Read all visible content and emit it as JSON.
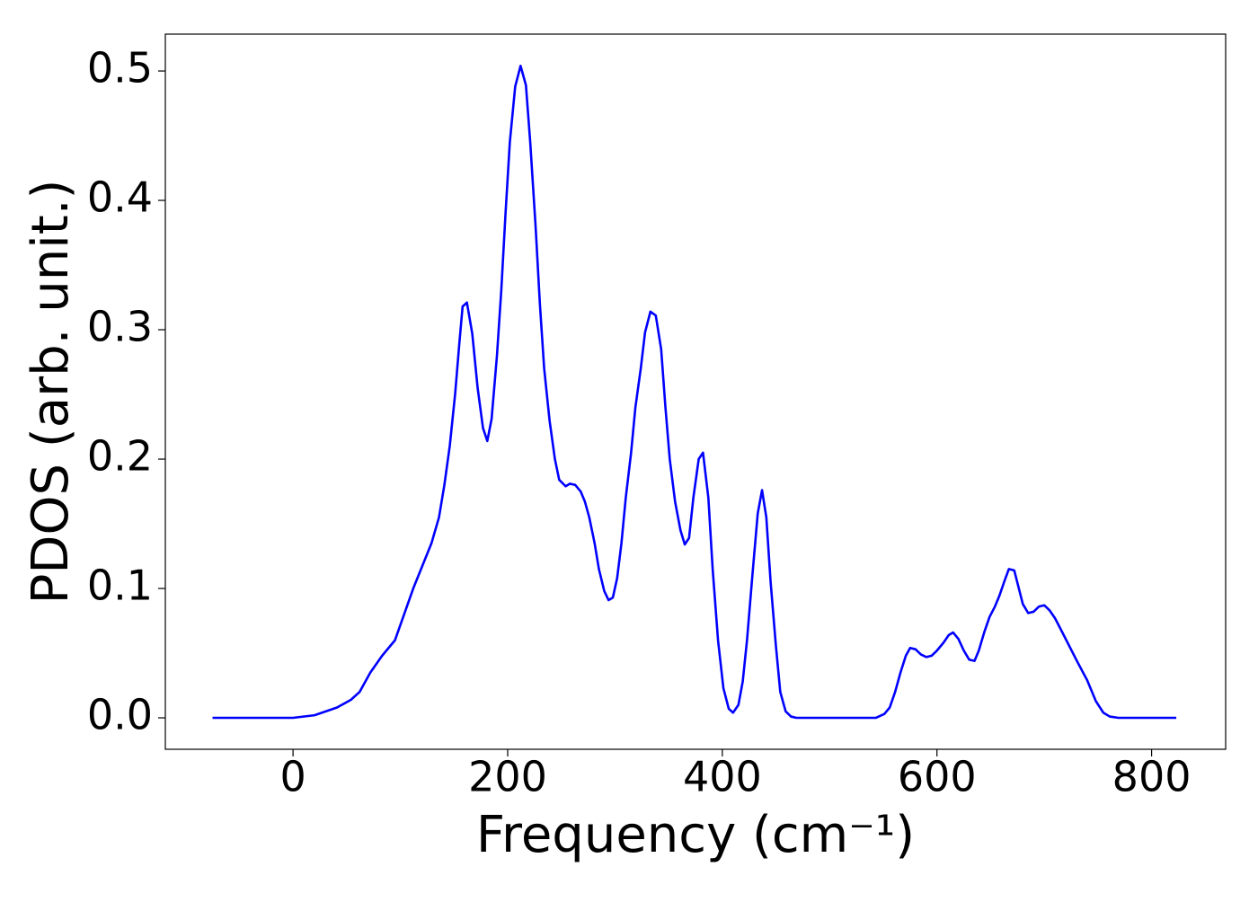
{
  "chart_data": {
    "type": "line",
    "xlabel": "Frequency (cm⁻¹)",
    "ylabel": "PDOS (arb. unit.)",
    "xlim": [
      -119,
      869
    ],
    "ylim": [
      -0.0243,
      0.5285
    ],
    "xticks": [
      0,
      200,
      400,
      600,
      800
    ],
    "yticks": [
      {
        "value": 0,
        "label": "0.0"
      },
      0.1,
      0.2,
      0.3,
      0.4,
      0.5
    ],
    "grid": false,
    "series": [
      {
        "color": "#0000ff",
        "x": [
          -75,
          0,
          20,
          41,
          54,
          62,
          72,
          83,
          95,
          112,
          129,
          136,
          141,
          146,
          151,
          155,
          158,
          162,
          167,
          172,
          177,
          181,
          185,
          190,
          194,
          198,
          202,
          207,
          212,
          217,
          221,
          226,
          230,
          234,
          239,
          244,
          248,
          254,
          258,
          263,
          268,
          272,
          276,
          281,
          285,
          290,
          294,
          298,
          302,
          306,
          310,
          315,
          319,
          324,
          328,
          333,
          338,
          343,
          347,
          351,
          356,
          361,
          365,
          369,
          373,
          378,
          382,
          387,
          391,
          396,
          401,
          406,
          410,
          415,
          419,
          423,
          428,
          433,
          437,
          441,
          445,
          450,
          454,
          459,
          464,
          469,
          543,
          551,
          556,
          561,
          566,
          571,
          575,
          580,
          585,
          590,
          595,
          600,
          606,
          611,
          615,
          620,
          625,
          630,
          635,
          639,
          644,
          649,
          654,
          658,
          663,
          667,
          672,
          676,
          680,
          685,
          690,
          695,
          700,
          705,
          710,
          715,
          723,
          731,
          740,
          748,
          755,
          761,
          769,
          823
        ],
        "values": [
          0,
          0,
          0.002,
          0.008,
          0.014,
          0.02,
          0.035,
          0.048,
          0.06,
          0.1,
          0.135,
          0.155,
          0.18,
          0.21,
          0.25,
          0.29,
          0.318,
          0.321,
          0.297,
          0.255,
          0.224,
          0.214,
          0.231,
          0.28,
          0.33,
          0.39,
          0.445,
          0.488,
          0.504,
          0.489,
          0.445,
          0.38,
          0.32,
          0.27,
          0.23,
          0.2,
          0.184,
          0.179,
          0.181,
          0.18,
          0.175,
          0.167,
          0.155,
          0.135,
          0.115,
          0.098,
          0.091,
          0.093,
          0.108,
          0.135,
          0.17,
          0.205,
          0.24,
          0.27,
          0.298,
          0.314,
          0.311,
          0.285,
          0.24,
          0.2,
          0.167,
          0.145,
          0.134,
          0.139,
          0.17,
          0.2,
          0.205,
          0.17,
          0.115,
          0.06,
          0.023,
          0.007,
          0.004,
          0.01,
          0.028,
          0.06,
          0.11,
          0.158,
          0.176,
          0.155,
          0.105,
          0.055,
          0.02,
          0.005,
          0.001,
          0,
          0,
          0.003,
          0.008,
          0.02,
          0.035,
          0.048,
          0.054,
          0.053,
          0.049,
          0.047,
          0.048,
          0.052,
          0.058,
          0.064,
          0.066,
          0.061,
          0.052,
          0.045,
          0.044,
          0.052,
          0.066,
          0.078,
          0.086,
          0.094,
          0.106,
          0.115,
          0.114,
          0.101,
          0.088,
          0.081,
          0.082,
          0.086,
          0.087,
          0.083,
          0.077,
          0.069,
          0.056,
          0.043,
          0.029,
          0.013,
          0.004,
          0.001,
          0,
          0
        ]
      }
    ]
  }
}
